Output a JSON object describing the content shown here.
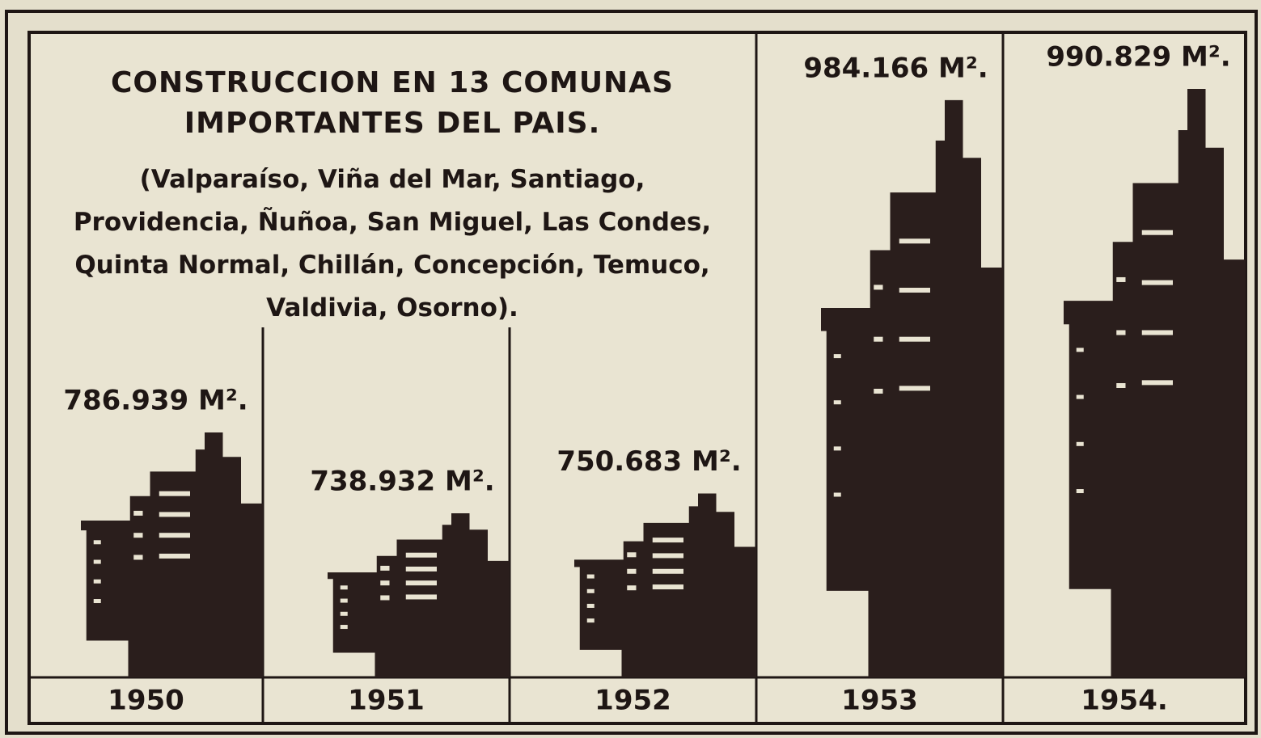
{
  "chart_data": {
    "type": "pictogram",
    "title": "CONSTRUCCION EN 13 COMUNAS IMPORTANTES DEL PAIS.",
    "subtitle": "(Valparaíso, Viña del Mar, Santiago, Providencia, Ñuñoa, San Miguel, Las Condes, Quinta Normal, Chillán, Concepción, Temuco, Valdivia, Osorno).",
    "categories": [
      "1950",
      "1951",
      "1952",
      "1953",
      "1954."
    ],
    "values": [
      786939,
      738932,
      750683,
      984166,
      990829
    ],
    "value_labels": [
      "786.939 M².",
      "738.932 M².",
      "750.683 M².",
      "984.166 M².",
      "990.829 M²."
    ],
    "color": "#2a1e1c"
  }
}
